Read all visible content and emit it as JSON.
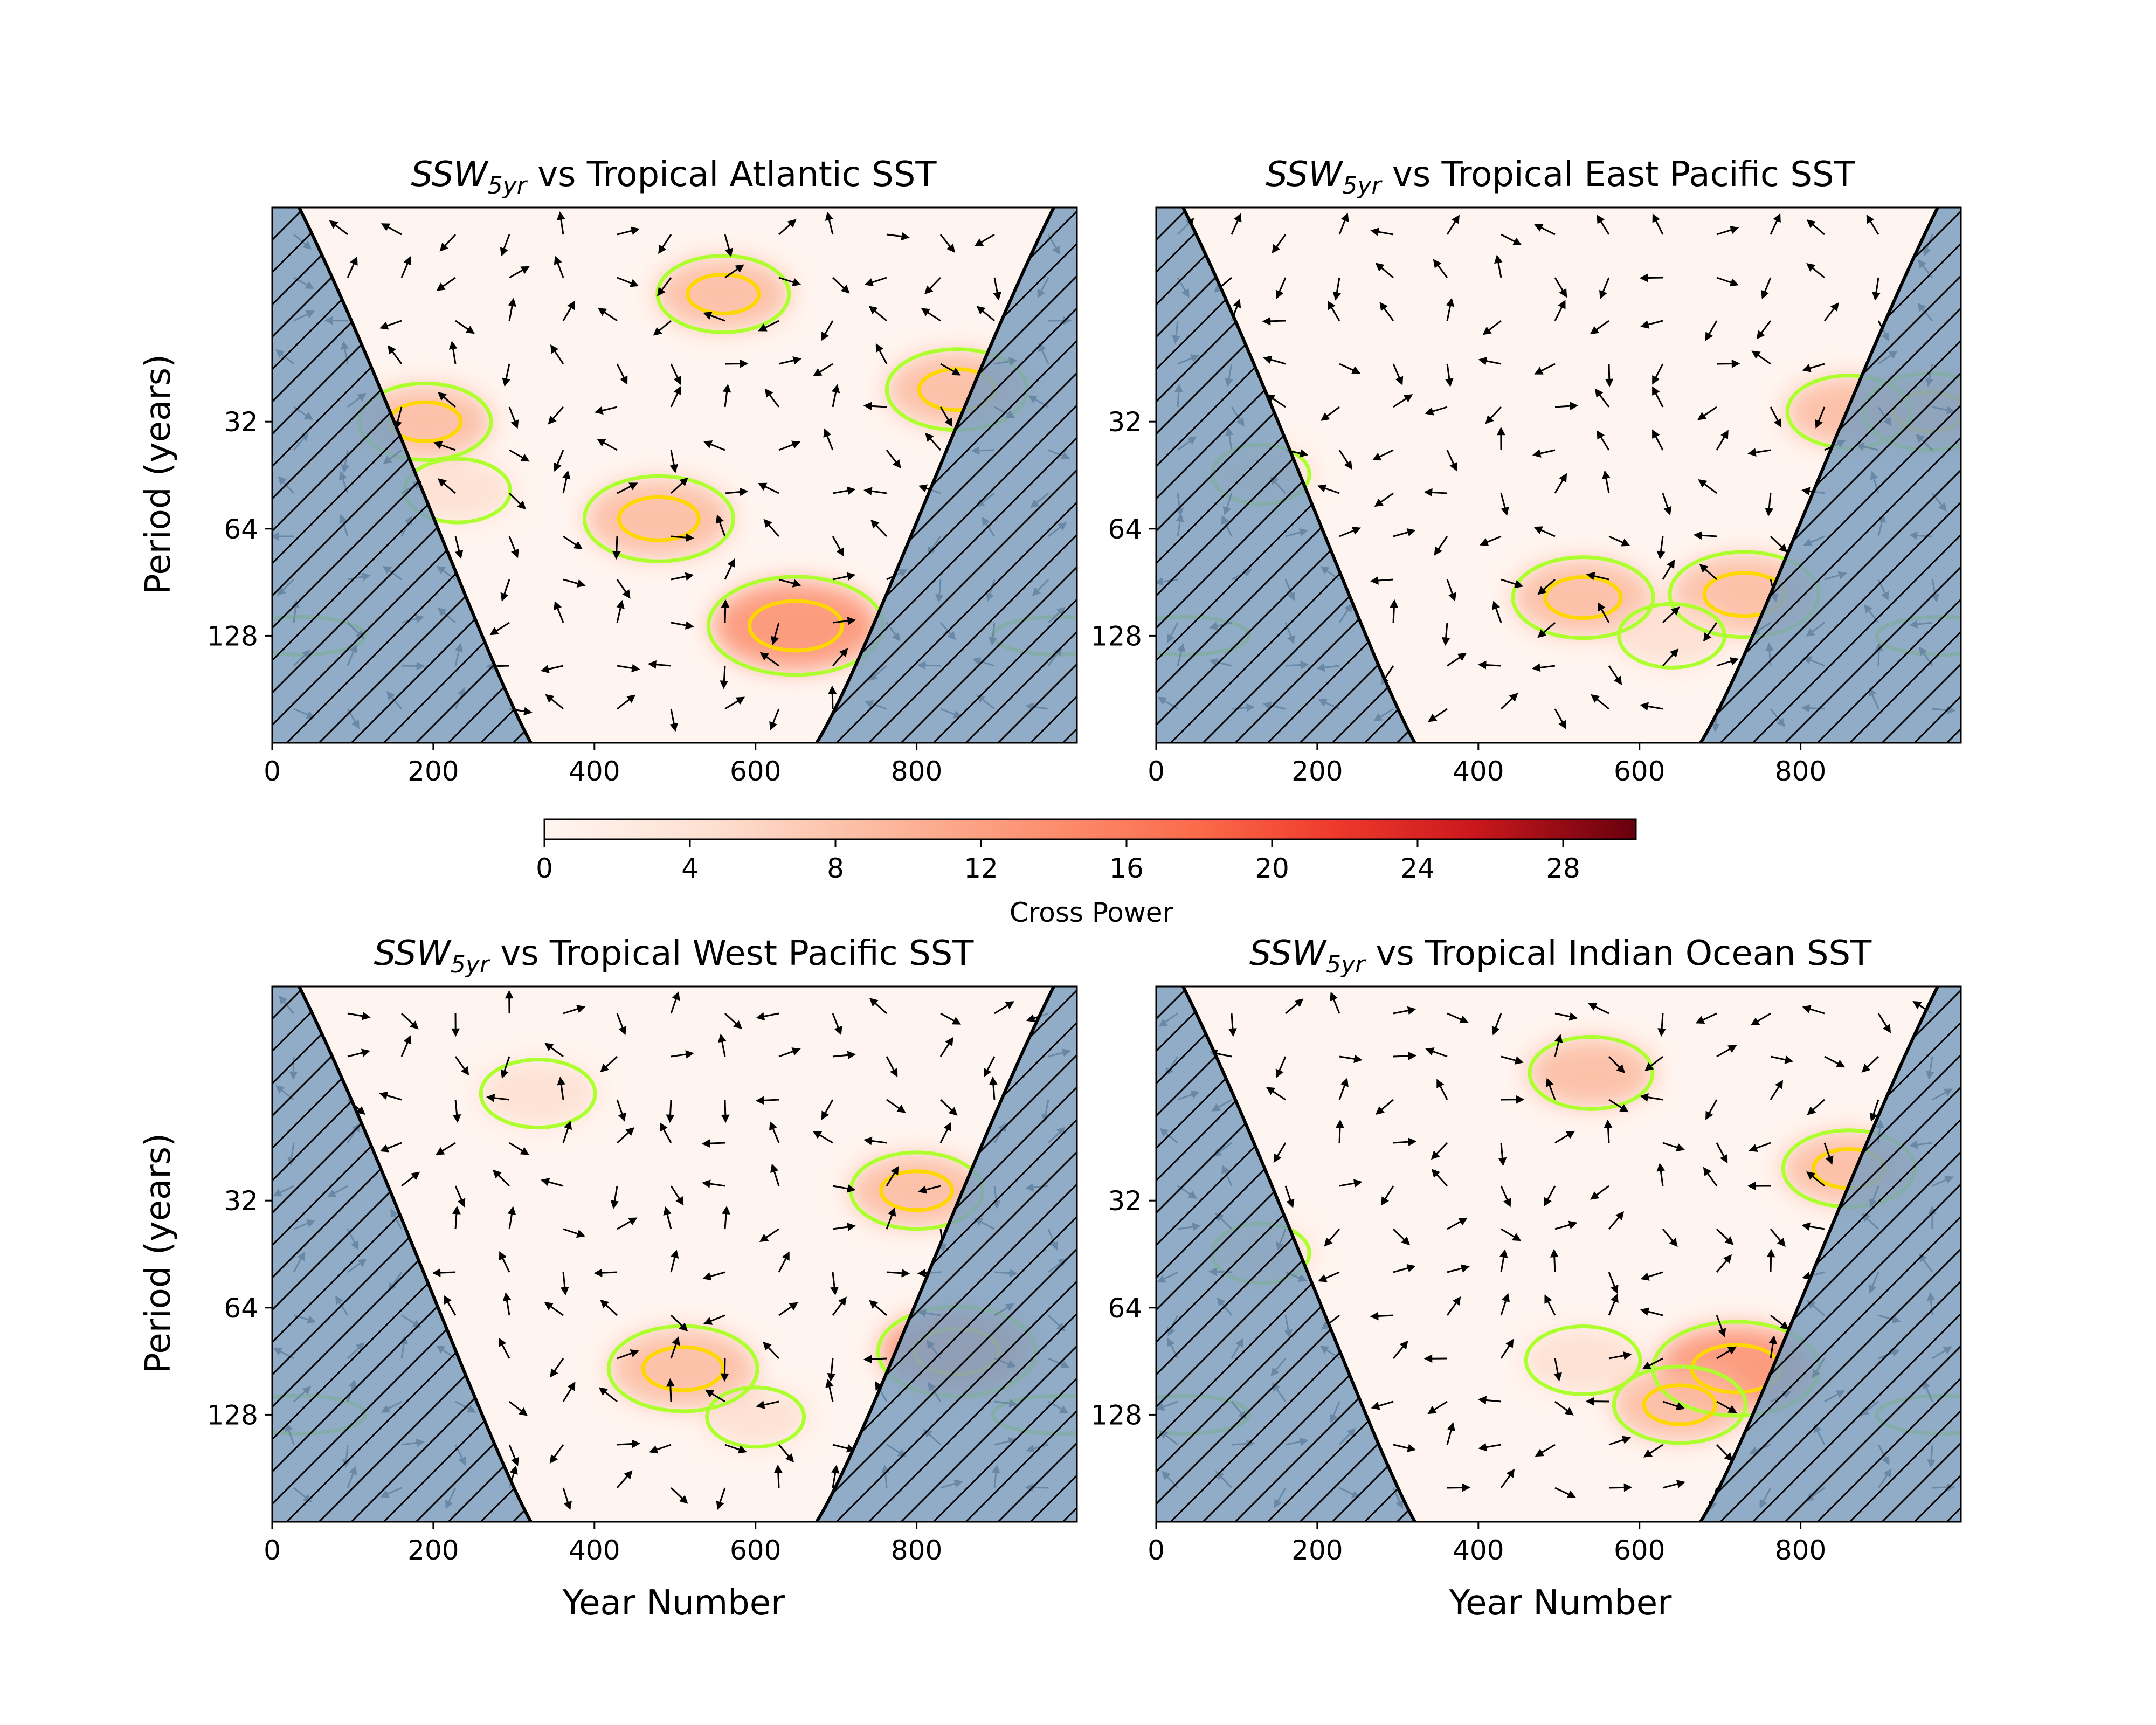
{
  "figure": {
    "colorbar": {
      "label": "Cross Power",
      "ticks": [
        "0",
        "4",
        "8",
        "12",
        "16",
        "20",
        "24",
        "28"
      ],
      "range": [
        0,
        30
      ],
      "colormap": "Reds"
    },
    "panels": [
      {
        "title_main": "SSW",
        "title_sub": "5yr",
        "title_rest": " vs Tropical Atlantic SST",
        "ylabel": "Period (years)",
        "xlabel": ""
      },
      {
        "title_main": "SSW",
        "title_sub": "5yr",
        "title_rest": " vs Tropical East Pacific SST",
        "ylabel": "",
        "xlabel": ""
      },
      {
        "title_main": "SSW",
        "title_sub": "5yr",
        "title_rest": " vs Tropical West Pacific SST",
        "ylabel": "Period (years)",
        "xlabel": "Year Number"
      },
      {
        "title_main": "SSW",
        "title_sub": "5yr",
        "title_rest": " vs Tropical Indian Ocean SST",
        "ylabel": "",
        "xlabel": "Year Number"
      }
    ],
    "colors": {
      "cone_fill": "#7d9fbf",
      "low_power": "#fff5f0",
      "contour_95": "#adff2f",
      "contour_99": "#ffd700"
    }
  },
  "chart_data": [
    {
      "type": "heatmap",
      "title": "SSW_5yr vs Tropical Atlantic SST",
      "xlabel": "",
      "ylabel": "Period (years)",
      "xlim": [
        0,
        999
      ],
      "ylim_period": [
        8,
        256
      ],
      "y_scale": "log2",
      "y_inverted": true,
      "xticks": [
        0,
        200,
        400,
        600,
        800
      ],
      "yticks": [
        32,
        64,
        128
      ],
      "cross_power_peaks": [
        {
          "x": 650,
          "period": 120,
          "power": 14
        },
        {
          "x": 480,
          "period": 60,
          "power": 11
        },
        {
          "x": 190,
          "period": 32,
          "power": 9
        },
        {
          "x": 850,
          "period": 26,
          "power": 10
        },
        {
          "x": 560,
          "period": 14,
          "power": 9
        },
        {
          "x": 230,
          "period": 50,
          "power": 6
        }
      ]
    },
    {
      "type": "heatmap",
      "title": "SSW_5yr vs Tropical East Pacific SST",
      "xlabel": "",
      "ylabel": "",
      "xlim": [
        0,
        999
      ],
      "ylim_period": [
        8,
        256
      ],
      "y_scale": "log2",
      "y_inverted": true,
      "xticks": [
        0,
        200,
        400,
        600,
        800
      ],
      "yticks": [
        32,
        64,
        128
      ],
      "cross_power_peaks": [
        {
          "x": 530,
          "period": 100,
          "power": 10
        },
        {
          "x": 730,
          "period": 98,
          "power": 11
        },
        {
          "x": 640,
          "period": 128,
          "power": 6
        },
        {
          "x": 860,
          "period": 30,
          "power": 8
        },
        {
          "x": 960,
          "period": 30,
          "power": 9
        },
        {
          "x": 130,
          "period": 45,
          "power": 5
        }
      ]
    },
    {
      "type": "heatmap",
      "title": "SSW_5yr vs Tropical West Pacific SST",
      "xlabel": "Year Number",
      "ylabel": "Period (years)",
      "xlim": [
        0,
        999
      ],
      "ylim_period": [
        8,
        256
      ],
      "y_scale": "log2",
      "y_inverted": true,
      "xticks": [
        0,
        200,
        400,
        600,
        800
      ],
      "yticks": [
        32,
        64,
        128
      ],
      "cross_power_peaks": [
        {
          "x": 510,
          "period": 95,
          "power": 11
        },
        {
          "x": 850,
          "period": 85,
          "power": 12
        },
        {
          "x": 800,
          "period": 30,
          "power": 9
        },
        {
          "x": 330,
          "period": 16,
          "power": 7
        },
        {
          "x": 600,
          "period": 130,
          "power": 5
        }
      ]
    },
    {
      "type": "heatmap",
      "title": "SSW_5yr vs Tropical Indian Ocean SST",
      "xlabel": "Year Number",
      "ylabel": "",
      "xlim": [
        0,
        999
      ],
      "ylim_period": [
        8,
        256
      ],
      "y_scale": "log2",
      "y_inverted": true,
      "xticks": [
        0,
        200,
        400,
        600,
        800
      ],
      "yticks": [
        32,
        64,
        128
      ],
      "cross_power_peaks": [
        {
          "x": 720,
          "period": 95,
          "power": 13
        },
        {
          "x": 650,
          "period": 120,
          "power": 9
        },
        {
          "x": 530,
          "period": 90,
          "power": 7
        },
        {
          "x": 860,
          "period": 26,
          "power": 9
        },
        {
          "x": 540,
          "period": 14,
          "power": 8
        },
        {
          "x": 130,
          "period": 45,
          "power": 5
        }
      ]
    }
  ]
}
